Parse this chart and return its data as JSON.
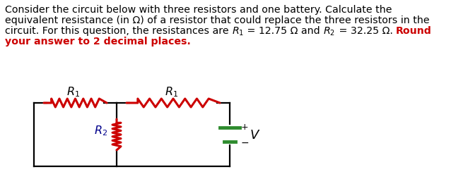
{
  "line1": "Consider the circuit below with three resistors and one battery. Calculate the",
  "line2": "equivalent resistance (in Ω) of a resistor that could replace the three resistors in the",
  "line3a": "circuit. For this question, the resistances are ",
  "line3b": " = 12.75 Ω and ",
  "line3c": " = 32.25 Ω. ",
  "line3d": "Round",
  "line4": "your answer to 2 decimal places.",
  "black": "#000000",
  "red": "#cc0000",
  "green": "#2e8b2e",
  "resistor_color": "#cc0000",
  "wire_color": "#000000",
  "label_color": "#000000",
  "r2_label_color": "#00008B",
  "fontsize_text": 10.2,
  "fontsize_label": 11.5
}
